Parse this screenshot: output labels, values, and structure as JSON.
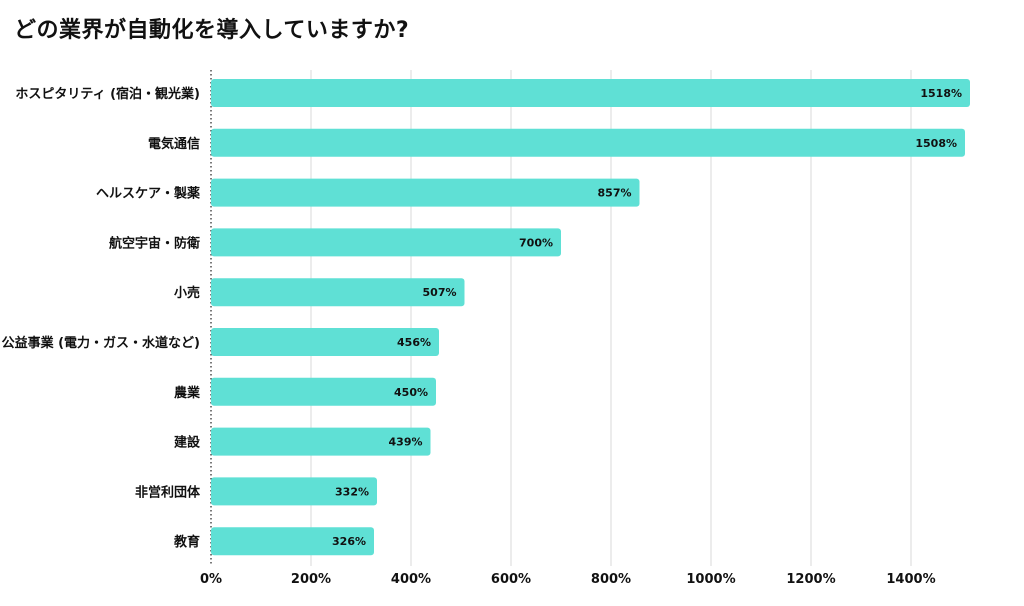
{
  "colors": {
    "bar": "#5fe0d5",
    "grid": "#d9d9d9",
    "text": "#111111"
  },
  "chart_data": {
    "type": "bar",
    "orientation": "horizontal",
    "title": "どの業界が自動化を導入していますか?",
    "xlabel": "",
    "ylabel": "",
    "categories": [
      "ホスピタリティ (宿泊・観光業)",
      "電気通信",
      "ヘルスケア・製薬",
      "航空宇宙・防衛",
      "小売",
      "公益事業 (電力・ガス・水道など)",
      "農業",
      "建設",
      "非営利団体",
      "教育"
    ],
    "values": [
      1518,
      1508,
      857,
      700,
      507,
      456,
      450,
      439,
      332,
      326
    ],
    "value_labels": [
      "1518%",
      "1508%",
      "857%",
      "700%",
      "507%",
      "456%",
      "450%",
      "439%",
      "332%",
      "326%"
    ],
    "xlim": [
      0,
      1500
    ],
    "x_ticks": [
      0,
      200,
      400,
      600,
      800,
      1000,
      1200,
      1400
    ],
    "x_tick_labels": [
      "0%",
      "200%",
      "400%",
      "600%",
      "800%",
      "1000%",
      "1200%",
      "1400%"
    ],
    "grid": true,
    "legend": "none"
  }
}
